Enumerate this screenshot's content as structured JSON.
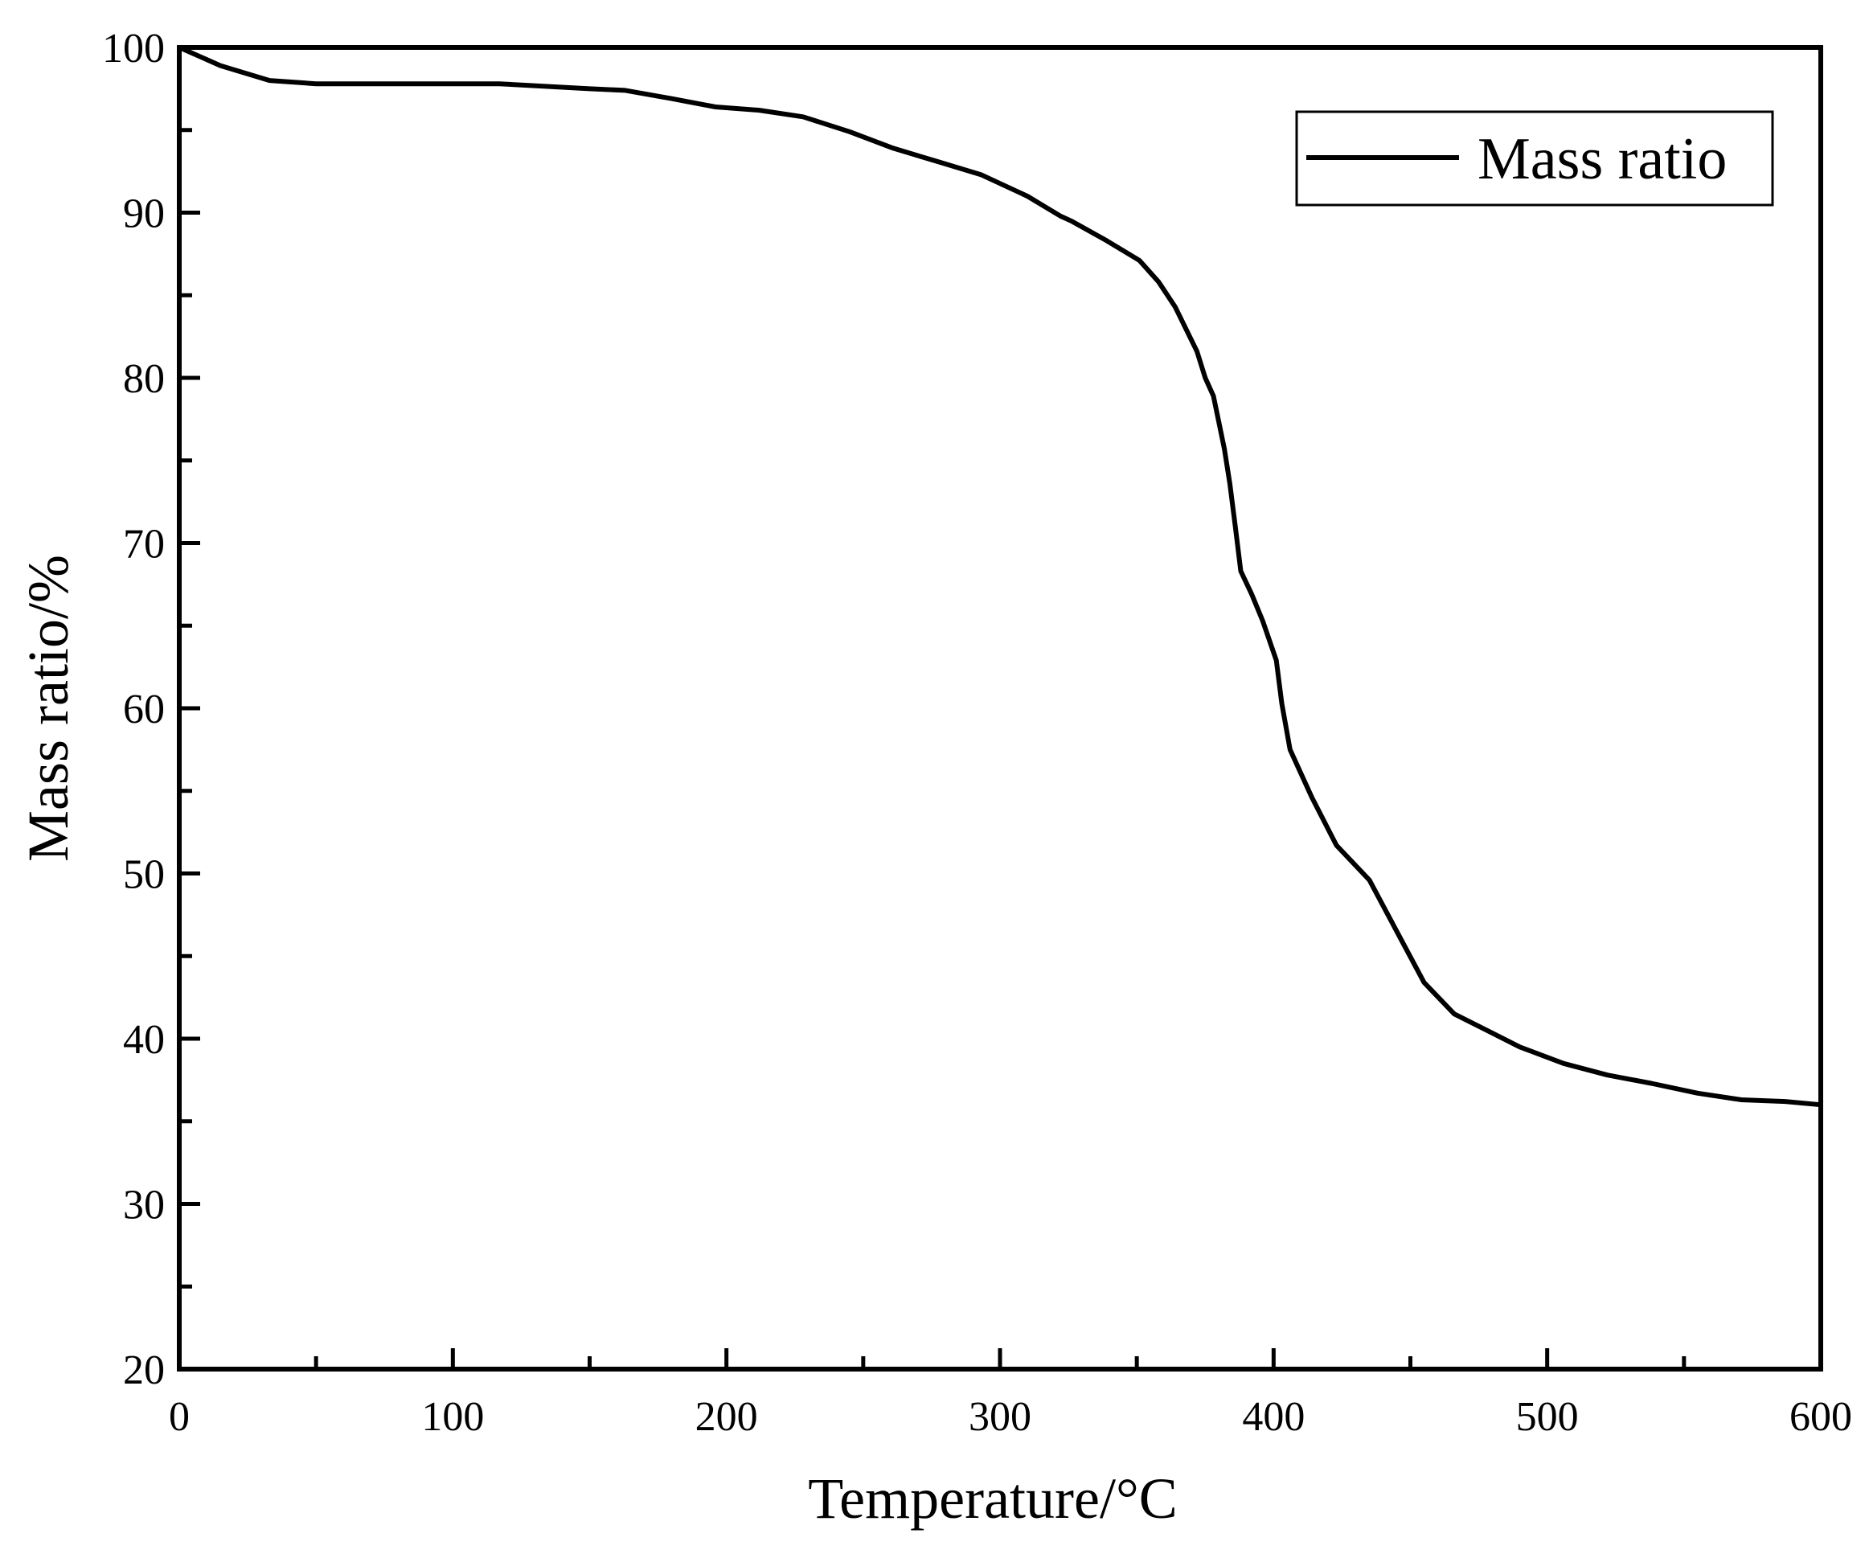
{
  "chart_data": {
    "type": "line",
    "xlabel": "Temperature/°C",
    "ylabel": "Mass ratio/%",
    "xlim": [
      0,
      600
    ],
    "ylim": [
      20,
      100
    ],
    "xticks": [
      0,
      100,
      200,
      300,
      400,
      500,
      600
    ],
    "yticks": [
      20,
      30,
      40,
      50,
      60,
      70,
      80,
      90,
      100
    ],
    "x_minor_step": 50,
    "y_minor_step": 5,
    "grid": false,
    "legend": {
      "position": "top-right",
      "entries": [
        "Mass ratio"
      ]
    },
    "series": [
      {
        "name": "Mass ratio",
        "color": "#000000",
        "points": [
          [
            0,
            100
          ],
          [
            15,
            98.9
          ],
          [
            33,
            98.0
          ],
          [
            50,
            97.8
          ],
          [
            100,
            97.8
          ],
          [
            117,
            97.8
          ],
          [
            150,
            97.5
          ],
          [
            163,
            97.4
          ],
          [
            180,
            96.9
          ],
          [
            196,
            96.4
          ],
          [
            212,
            96.2
          ],
          [
            228,
            95.8
          ],
          [
            245,
            94.9
          ],
          [
            261,
            93.9
          ],
          [
            277,
            93.1
          ],
          [
            293,
            92.3
          ],
          [
            310,
            91.0
          ],
          [
            322,
            89.8
          ],
          [
            326,
            89.5
          ],
          [
            339,
            88.3
          ],
          [
            351,
            87.1
          ],
          [
            358,
            85.8
          ],
          [
            364,
            84.3
          ],
          [
            372,
            81.6
          ],
          [
            375,
            80.0
          ],
          [
            378,
            78.9
          ],
          [
            380,
            77.3
          ],
          [
            382,
            75.7
          ],
          [
            384,
            73.6
          ],
          [
            386,
            71.0
          ],
          [
            388,
            68.3
          ],
          [
            392,
            66.9
          ],
          [
            396,
            65.3
          ],
          [
            401,
            62.9
          ],
          [
            403,
            60.3
          ],
          [
            406,
            57.5
          ],
          [
            414,
            54.6
          ],
          [
            423,
            51.7
          ],
          [
            435,
            49.6
          ],
          [
            445,
            46.5
          ],
          [
            455,
            43.4
          ],
          [
            466,
            41.5
          ],
          [
            478,
            40.5
          ],
          [
            490,
            39.5
          ],
          [
            506,
            38.5
          ],
          [
            522,
            37.8
          ],
          [
            538,
            37.3
          ],
          [
            555,
            36.7
          ],
          [
            571,
            36.3
          ],
          [
            587,
            36.2
          ],
          [
            600,
            36.0
          ]
        ]
      }
    ]
  }
}
